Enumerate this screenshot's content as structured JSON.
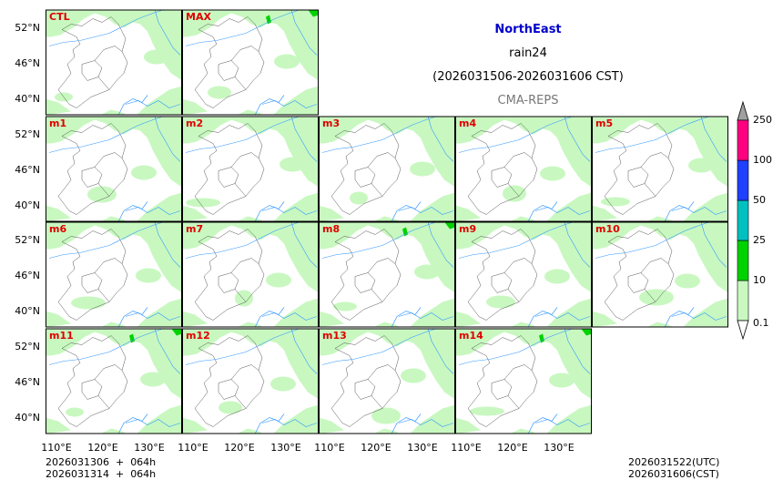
{
  "title": "NorthEast",
  "subtitle": "rain24",
  "period": "(2026031506-2026031606 CST)",
  "source": "CMA-REPS",
  "colors": {
    "title": "#0000cc",
    "source": "#777777",
    "label": "#e00000",
    "river": "#3399ff",
    "border": "#555555"
  },
  "panels": [
    {
      "label": "CTL",
      "row": 0,
      "col": 0
    },
    {
      "label": "MAX",
      "row": 0,
      "col": 1
    },
    {
      "label": "m1",
      "row": 1,
      "col": 0
    },
    {
      "label": "m2",
      "row": 1,
      "col": 1
    },
    {
      "label": "m3",
      "row": 1,
      "col": 2
    },
    {
      "label": "m4",
      "row": 1,
      "col": 3
    },
    {
      "label": "m5",
      "row": 1,
      "col": 4
    },
    {
      "label": "m6",
      "row": 2,
      "col": 0
    },
    {
      "label": "m7",
      "row": 2,
      "col": 1
    },
    {
      "label": "m8",
      "row": 2,
      "col": 2
    },
    {
      "label": "m9",
      "row": 2,
      "col": 3
    },
    {
      "label": "m10",
      "row": 2,
      "col": 4
    },
    {
      "label": "m11",
      "row": 3,
      "col": 0
    },
    {
      "label": "m12",
      "row": 3,
      "col": 1
    },
    {
      "label": "m13",
      "row": 3,
      "col": 2
    },
    {
      "label": "m14",
      "row": 3,
      "col": 3
    }
  ],
  "lat_labels": [
    "52°N",
    "46°N",
    "40°N"
  ],
  "lon_labels": [
    "110°E",
    "120°E",
    "130°E"
  ],
  "colorbar": {
    "levels": [
      "0.1",
      "10",
      "25",
      "50",
      "100",
      "250"
    ],
    "colors": [
      "#c8f8c0",
      "#00d200",
      "#00c0c0",
      "#2040ff",
      "#ff0080",
      "#a0a0a0"
    ]
  },
  "footer": {
    "left_line1": "2026031306  +  064h",
    "left_line2": "2026031314  +  064h",
    "right_line1": "2026031522(UTC)",
    "right_line2": "2026031606(CST)"
  }
}
